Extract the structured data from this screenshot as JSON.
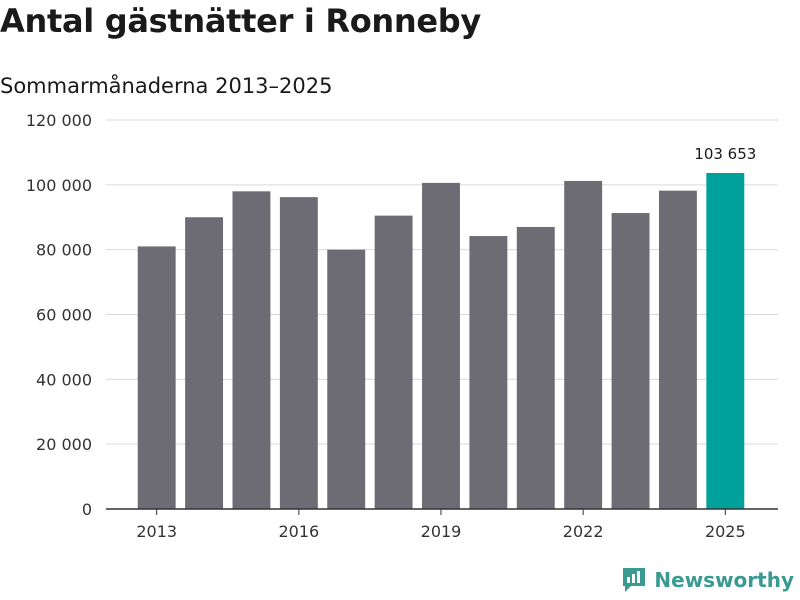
{
  "header": {
    "title": "Antal gästnätter i Ronneby",
    "subtitle": "Sommarmånaderna 2013–2025"
  },
  "brand": {
    "name": "Newsworthy",
    "color": "#3a9a92"
  },
  "colors": {
    "bar": "#6d6c74",
    "highlight": "#00a19a",
    "grid": "#d9d9d9",
    "axis": "#333333"
  },
  "chart_data": {
    "type": "bar",
    "categories": [
      "2013",
      "2014",
      "2015",
      "2016",
      "2017",
      "2018",
      "2019",
      "2020",
      "2021",
      "2022",
      "2023",
      "2024",
      "2025"
    ],
    "values": [
      81000,
      90000,
      98000,
      96200,
      80000,
      90500,
      100600,
      84200,
      87000,
      101200,
      91300,
      98200,
      103653
    ],
    "highlight_index": 12,
    "data_labels": [
      {
        "index": 12,
        "text": "103 653"
      }
    ],
    "ylim": [
      0,
      120000
    ],
    "yticks": [
      0,
      20000,
      40000,
      60000,
      80000,
      100000,
      120000
    ],
    "ytick_labels": [
      "0",
      "20 000",
      "40 000",
      "60 000",
      "80 000",
      "100 000",
      "120 000"
    ],
    "xtick_labels": [
      "2013",
      "2016",
      "2019",
      "2022",
      "2025"
    ],
    "grid": true,
    "xlabel": "",
    "ylabel": ""
  }
}
